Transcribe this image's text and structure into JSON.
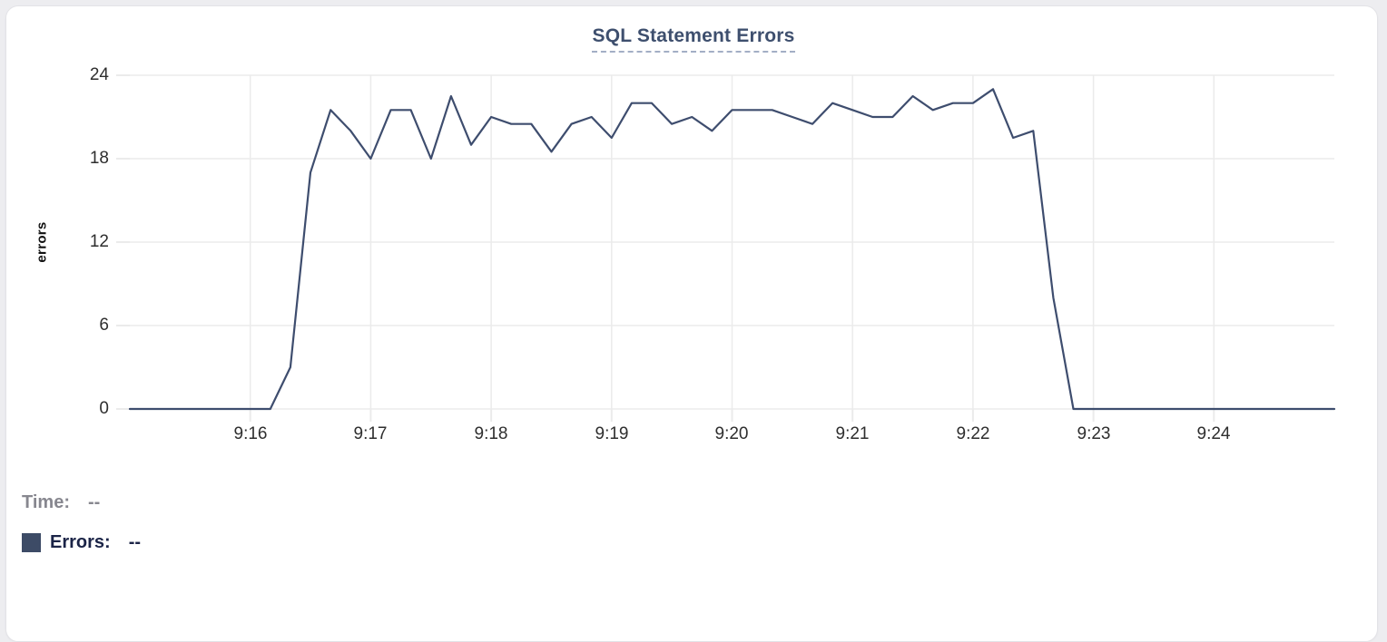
{
  "colors": {
    "line": "#3e4d6e",
    "swatch": "#3d4b66",
    "title_text": "#3e4f6e",
    "title_underline": "#a3aec5",
    "grid": "#ebebeb",
    "tick_text": "#2e2e2e",
    "time_label_text": "#87878f",
    "errors_label_text": "#1b2447",
    "card_border": "#e3e3e7",
    "page_background": "#ededf0"
  },
  "legend": {
    "time_label": "Time:",
    "time_value": "--",
    "errors_label": "Errors:",
    "errors_value": "--"
  },
  "chart_data": {
    "type": "line",
    "title": "SQL Statement Errors",
    "xlabel": "",
    "ylabel": "errors",
    "ylim": [
      0,
      24
    ],
    "yticks": [
      0,
      6,
      12,
      18,
      24
    ],
    "ytick_labels": [
      "24",
      "18",
      "12",
      "6",
      "0"
    ],
    "xtick_labels": [
      "9:16",
      "9:17",
      "9:18",
      "9:19",
      "9:20",
      "9:21",
      "9:22",
      "9:23",
      "9:24"
    ],
    "x_start": "9:15:00",
    "x_end": "9:25:00",
    "x_span_seconds": 600,
    "sample_interval_seconds": 10,
    "grid": true,
    "legend_position": "bottom-left",
    "series": [
      {
        "name": "Errors",
        "color": "#3e4d6e",
        "values": [
          0,
          0,
          0,
          0,
          0,
          0,
          0,
          0,
          3,
          17,
          21.5,
          20,
          18,
          21.5,
          21.5,
          18,
          22.5,
          19,
          21,
          20.5,
          20.5,
          18.5,
          20.5,
          21,
          19.5,
          22,
          22,
          20.5,
          21,
          20,
          21.5,
          21.5,
          21.5,
          21,
          20.5,
          22,
          21.5,
          21,
          21,
          22.5,
          21.5,
          22,
          22,
          23,
          19.5,
          20,
          8,
          0,
          0,
          0,
          0,
          0,
          0,
          0,
          0,
          0,
          0,
          0,
          0,
          0,
          0
        ]
      }
    ]
  }
}
